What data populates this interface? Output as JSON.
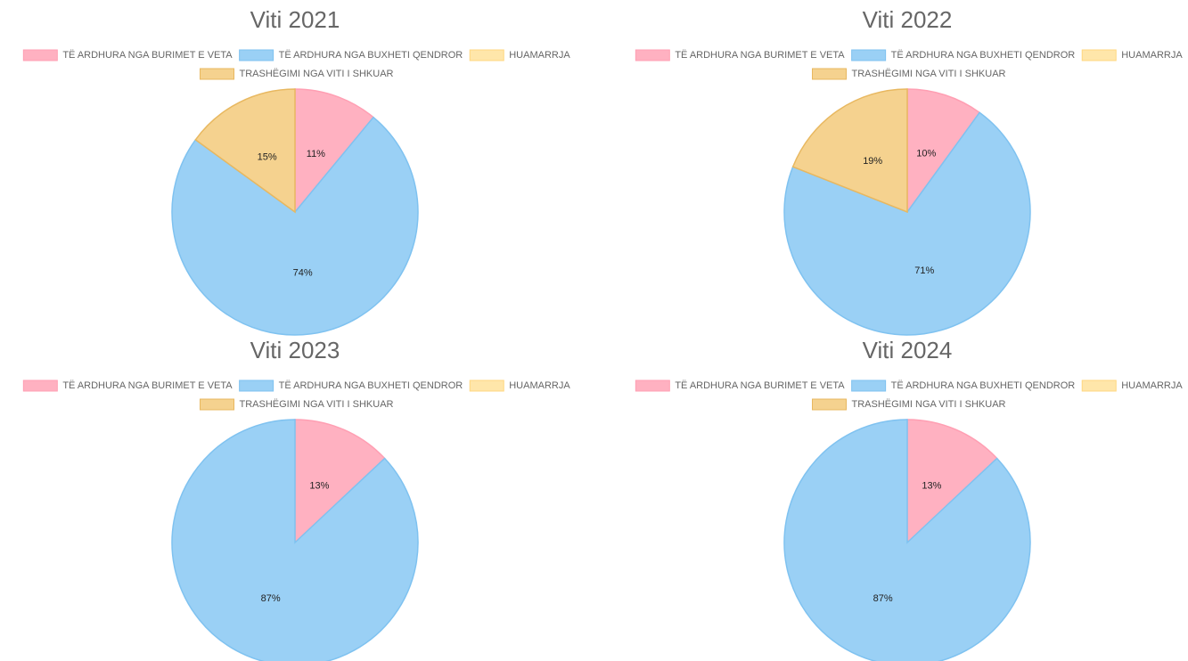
{
  "chart_data": [
    {
      "type": "pie",
      "title": "Viti 2021",
      "categories": [
        "TË ARDHURA NGA BURIMET E VETA",
        "TË ARDHURA NGA BUXHETI QENDROR",
        "HUAMARRJA",
        "TRASHËGIMI NGA VITI I SHKUAR"
      ],
      "values": [
        11,
        74,
        0,
        15
      ],
      "value_labels": [
        "11%",
        "74%",
        null,
        "15%"
      ],
      "colors": [
        "#ffb1c1",
        "#9ad0f5",
        "#ffe6aa",
        "#f5d28f"
      ],
      "border_colors": [
        "#ff9fb3",
        "#7fc2f0",
        "#ffd780",
        "#e8b860"
      ]
    },
    {
      "type": "pie",
      "title": "Viti 2022",
      "categories": [
        "TË ARDHURA NGA BURIMET E VETA",
        "TË ARDHURA NGA BUXHETI QENDROR",
        "HUAMARRJA",
        "TRASHËGIMI NGA VITI I SHKUAR"
      ],
      "values": [
        10,
        71,
        0,
        19
      ],
      "value_labels": [
        "10%",
        "71%",
        null,
        "19%"
      ],
      "colors": [
        "#ffb1c1",
        "#9ad0f5",
        "#ffe6aa",
        "#f5d28f"
      ],
      "border_colors": [
        "#ff9fb3",
        "#7fc2f0",
        "#ffd780",
        "#e8b860"
      ]
    },
    {
      "type": "pie",
      "title": "Viti 2023",
      "categories": [
        "TË ARDHURA NGA BURIMET E VETA",
        "TË ARDHURA NGA BUXHETI QENDROR",
        "HUAMARRJA",
        "TRASHËGIMI NGA VITI I SHKUAR"
      ],
      "values": [
        13,
        87,
        0,
        0
      ],
      "value_labels": [
        "13%",
        "87%",
        null,
        null
      ],
      "colors": [
        "#ffb1c1",
        "#9ad0f5",
        "#ffe6aa",
        "#f5d28f"
      ],
      "border_colors": [
        "#ff9fb3",
        "#7fc2f0",
        "#ffd780",
        "#e8b860"
      ]
    },
    {
      "type": "pie",
      "title": "Viti 2024",
      "categories": [
        "TË ARDHURA NGA BURIMET E VETA",
        "TË ARDHURA NGA BUXHETI QENDROR",
        "HUAMARRJA",
        "TRASHËGIMI NGA VITI I SHKUAR"
      ],
      "values": [
        13,
        87,
        0,
        0
      ],
      "value_labels": [
        "13%",
        "87%",
        null,
        null
      ],
      "colors": [
        "#ffb1c1",
        "#9ad0f5",
        "#ffe6aa",
        "#f5d28f"
      ],
      "border_colors": [
        "#ff9fb3",
        "#7fc2f0",
        "#ffd780",
        "#e8b860"
      ]
    }
  ]
}
